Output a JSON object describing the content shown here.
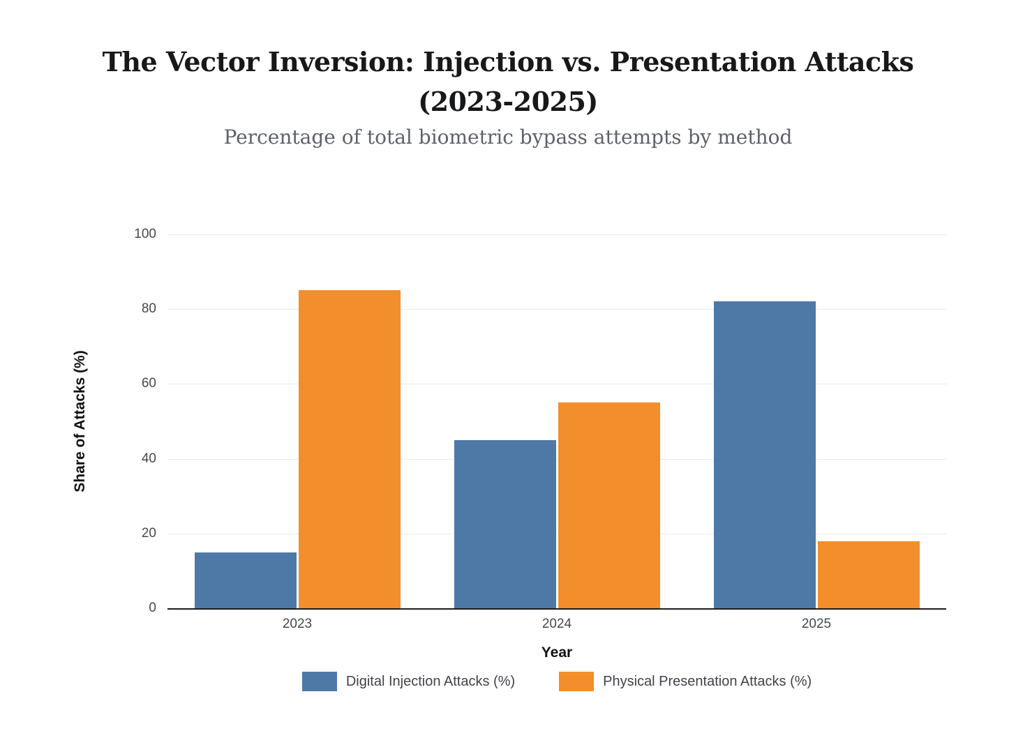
{
  "header": {
    "title_lines": [
      "The Vector Inversion: Injection vs. Presentation Attacks",
      "(2023-2025)"
    ],
    "subtitle": "Percentage of total biometric bypass attempts by method"
  },
  "chart_data": {
    "type": "bar",
    "title": "The Vector Inversion: Injection vs. Presentation Attacks (2023-2025)",
    "subtitle": "Percentage of total biometric bypass attempts by method",
    "categories": [
      "2023",
      "2024",
      "2025"
    ],
    "series": [
      {
        "name": "Digital Injection Attacks (%)",
        "color": "#4e79a7",
        "values": [
          15,
          45,
          82
        ]
      },
      {
        "name": "Physical Presentation Attacks (%)",
        "color": "#f28e2b",
        "values": [
          85,
          55,
          18
        ]
      }
    ],
    "xlabel": "Year",
    "ylabel": "Share of Attacks (%)",
    "ylim": [
      0,
      100
    ],
    "yticks": [
      0,
      20,
      40,
      60,
      80,
      100
    ],
    "grid": true,
    "legend_position": "bottom",
    "colors": {
      "background": "#ffffff",
      "gridline": "#e8eaed",
      "axis_line": "#1c1c1c",
      "tick_label": "#45484d",
      "title": "#17181a",
      "subtitle": "#5d6269",
      "legend_text": "#3f4348"
    }
  }
}
